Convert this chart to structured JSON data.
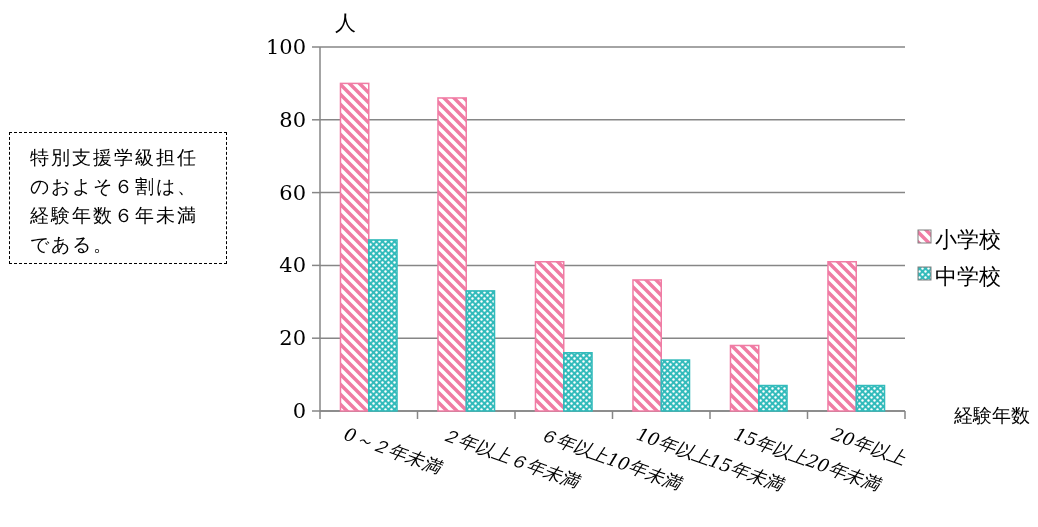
{
  "chart_data": {
    "type": "bar",
    "ylabel": "人",
    "xlabel": "経験年数",
    "categories": [
      "0～２年未満",
      "２年以上６年未満",
      "６年以上10年未満",
      "10年以上15年未満",
      "15年以上20年未満",
      "20年以上"
    ],
    "series": [
      {
        "name": "小学校",
        "color": "#f07ca4",
        "values": [
          90,
          86,
          41,
          36,
          18,
          41
        ]
      },
      {
        "name": "中学校",
        "color": "#33bbbb",
        "values": [
          47,
          33,
          16,
          14,
          7,
          7
        ]
      }
    ],
    "ylim": [
      0,
      100
    ],
    "yticks": [
      0,
      20,
      40,
      60,
      80,
      100
    ],
    "grid": "y",
    "legend": "right",
    "annotations": [
      "特別支援学級担任のおよそ６割は、経験年数６年未満である。"
    ]
  }
}
